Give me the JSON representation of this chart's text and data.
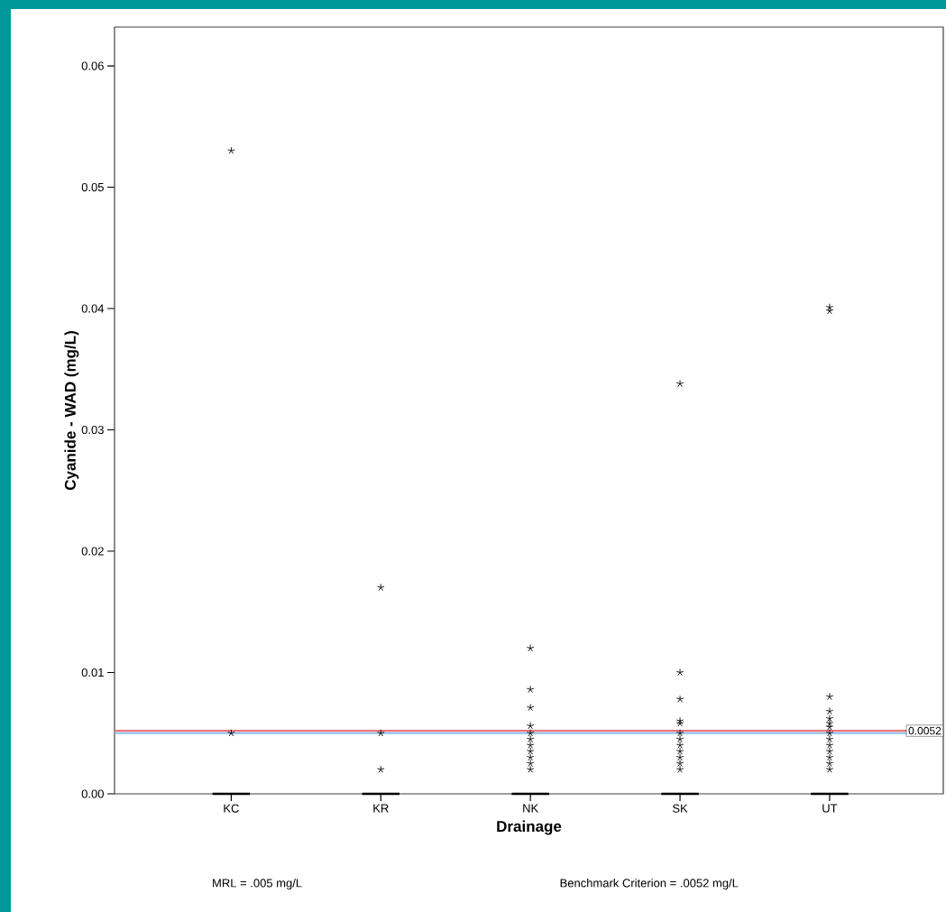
{
  "chart_data": {
    "type": "box",
    "xlabel": "Drainage",
    "ylabel": "Cyanide - WAD (mg/L)",
    "categories": [
      "KC",
      "KR",
      "NK",
      "SK",
      "UT"
    ],
    "boxes": [
      {
        "low": 0,
        "q1": 0,
        "median": 0,
        "q3": 0,
        "high": 0,
        "outliers": [
          0.053,
          0.005
        ]
      },
      {
        "low": 0,
        "q1": 0,
        "median": 0,
        "q3": 0,
        "high": 0,
        "outliers": [
          0.017,
          0.005,
          0.002
        ]
      },
      {
        "low": 0,
        "q1": 0,
        "median": 0,
        "q3": 0,
        "high": 0,
        "outliers": [
          0.012,
          0.0086,
          0.0071,
          0.0056,
          0.005,
          0.0045,
          0.004,
          0.0035,
          0.003,
          0.0025,
          0.002
        ]
      },
      {
        "low": 0,
        "q1": 0,
        "median": 0,
        "q3": 0,
        "high": 0,
        "outliers": [
          0.0338,
          0.01,
          0.0078,
          0.006,
          0.0058,
          0.005,
          0.0045,
          0.004,
          0.0035,
          0.003,
          0.0025,
          0.002
        ]
      },
      {
        "low": 0,
        "q1": 0,
        "median": 0,
        "q3": 0,
        "high": 0,
        "outliers": [
          0.0401,
          0.0398,
          0.008,
          0.0068,
          0.0062,
          0.0058,
          0.0055,
          0.005,
          0.0045,
          0.004,
          0.0035,
          0.003,
          0.0025,
          0.002
        ]
      }
    ],
    "marker": "star",
    "ylim": [
      0,
      0.0632
    ],
    "yticks": [
      {
        "value": 0,
        "label": "0.00"
      },
      0.01,
      0.02,
      0.03,
      0.04,
      0.05,
      0.06
    ],
    "ref_lines": [
      {
        "axis": "y",
        "value": 0.005,
        "color": "#8fbde8"
      },
      {
        "axis": "y",
        "value": 0.0052,
        "label": "0.0052",
        "color": "#e8737a"
      }
    ],
    "annotations": [
      "MRL = .005 mg/L",
      "Benchmark Criterion = .0052 mg/L"
    ]
  }
}
